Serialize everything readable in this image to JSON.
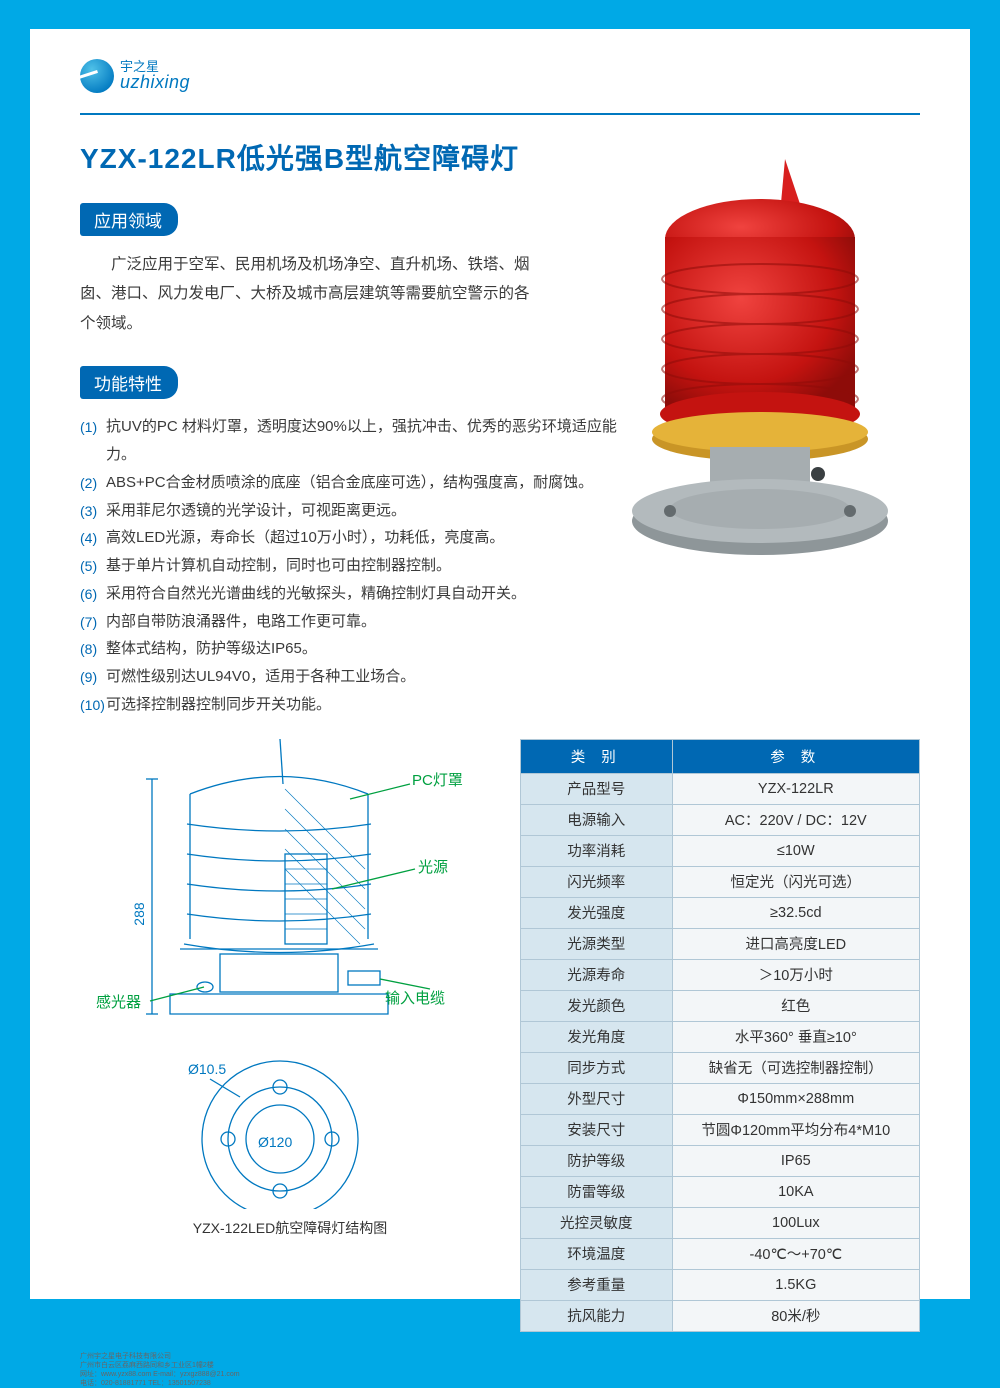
{
  "logo": {
    "cn": "宇之星",
    "en": "uzhixing"
  },
  "title": "YZX-122LR低光强B型航空障碍灯",
  "sections": {
    "application": {
      "header": "应用领域",
      "text": "　　广泛应用于空军、民用机场及机场净空、直升机场、铁塔、烟囱、港口、风力发电厂、大桥及城市高层建筑等需要航空警示的各个领域。"
    },
    "features": {
      "header": "功能特性",
      "items": [
        "抗UV的PC 材料灯罩，透明度达90%以上，强抗冲击、优秀的恶劣环境适应能力。",
        "ABS+PC合金材质喷涂的底座（铝合金底座可选），结构强度高，耐腐蚀。",
        "采用菲尼尔透镜的光学设计，可视距离更远。",
        "高效LED光源，寿命长（超过10万小时），功耗低，亮度高。",
        "基于单片计算机自动控制，同时也可由控制器控制。",
        "采用符合自然光光谱曲线的光敏探头，精确控制灯具自动开关。",
        "内部自带防浪涌器件，电路工作更可靠。",
        "整体式结构，防护等级达IP65。",
        "可燃性级别达UL94V0，适用于各种工业场合。",
        "可选择控制器控制同步开关功能。"
      ]
    }
  },
  "diagram": {
    "labels": {
      "cover": "PC灯罩",
      "source": "光源",
      "sensor": "感光器",
      "cable": "输入电缆"
    },
    "dims": {
      "height": "288",
      "topDia": "Ø10.5",
      "pcd": "Ø120"
    },
    "caption": "YZX-122LED航空障碍灯结构图"
  },
  "product_colors": {
    "dome": "#d81f1e",
    "dome_highlight": "#f0433f",
    "collar": "#e5b339",
    "base": "#a6adb0"
  },
  "table": {
    "head": [
      "类 别",
      "参 数"
    ],
    "rows": [
      [
        "产品型号",
        "YZX-122LR"
      ],
      [
        "电源输入",
        "AC：220V / DC：12V"
      ],
      [
        "功率消耗",
        "≤10W"
      ],
      [
        "闪光频率",
        "恒定光（闪光可选）"
      ],
      [
        "发光强度",
        "≥32.5cd"
      ],
      [
        "光源类型",
        "进口高亮度LED"
      ],
      [
        "光源寿命",
        "＞10万小时"
      ],
      [
        "发光颜色",
        "红色"
      ],
      [
        "发光角度",
        "水平360° 垂直≥10°"
      ],
      [
        "同步方式",
        "缺省无（可选控制器控制）"
      ],
      [
        "外型尺寸",
        "Φ150mm×288mm"
      ],
      [
        "安装尺寸",
        "节圆Φ120mm平均分布4*M10"
      ],
      [
        "防护等级",
        "IP65"
      ],
      [
        "防雷等级",
        "10KA"
      ],
      [
        "光控灵敏度",
        "100Lux"
      ],
      [
        "环境温度",
        "-40℃～+70℃"
      ],
      [
        "参考重量",
        "1.5KG"
      ],
      [
        "抗风能力",
        "80米/秒"
      ]
    ]
  },
  "footer": [
    "广州宇之星电子科技有限公司",
    "广州市白云区荔麻西路同和乡工业区1幢2楼",
    "网址：www.yzx88.com  E-mail：yzxgz888@21.com",
    "电话：020-81881771   TEL：13501507238"
  ]
}
